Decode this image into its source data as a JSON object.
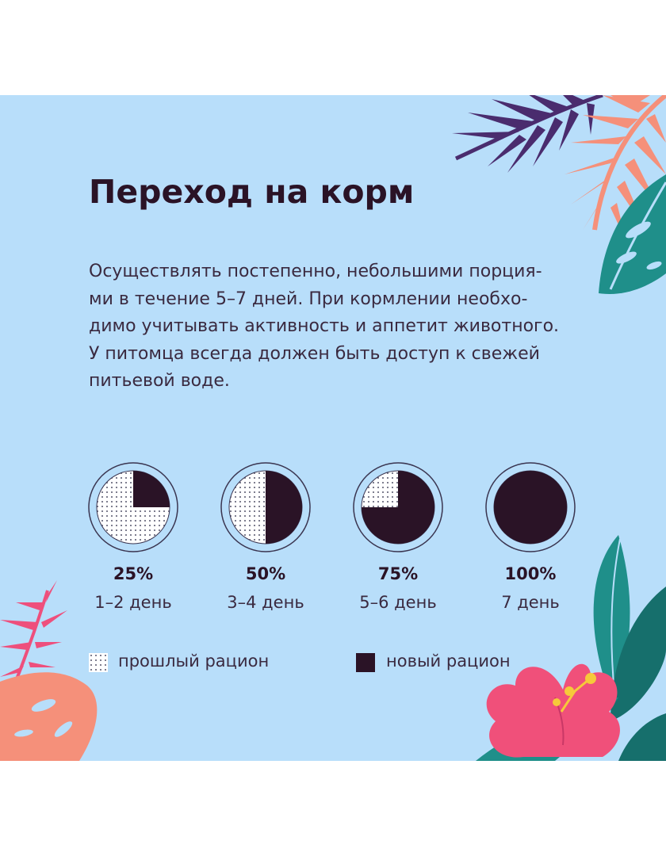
{
  "title": "Переход на корм",
  "paragraph_lines": [
    "Осуществлять постепенно, небольшими порция-",
    "ми в течение 5–7 дней. При кормлении необхо-",
    "димо учитывать активность и аппетит животного.",
    "У питомца всегда должен быть доступ к свежей",
    "питьевой воде."
  ],
  "stages": [
    {
      "percent_label": "25%",
      "days_label": "1–2 день",
      "new_fraction": 0.25
    },
    {
      "percent_label": "50%",
      "days_label": "3–4 день",
      "new_fraction": 0.5
    },
    {
      "percent_label": "75%",
      "days_label": "5–6 день",
      "new_fraction": 0.75
    },
    {
      "percent_label": "100%",
      "days_label": "7 день",
      "new_fraction": 1.0
    }
  ],
  "legend": {
    "old_label": "прошлый рацион",
    "new_label": "новый рацион"
  },
  "colors": {
    "background": "#b8defa",
    "new_ration": "#2a1326",
    "old_ration_dots": "#5a5a70",
    "ring": "#3a3550",
    "leaf_purple": "#4a2c6e",
    "leaf_salmon": "#f5907a",
    "leaf_teal": "#1f8f8a",
    "leaf_pink": "#ee4f7c",
    "flower_pink": "#f0507a"
  }
}
